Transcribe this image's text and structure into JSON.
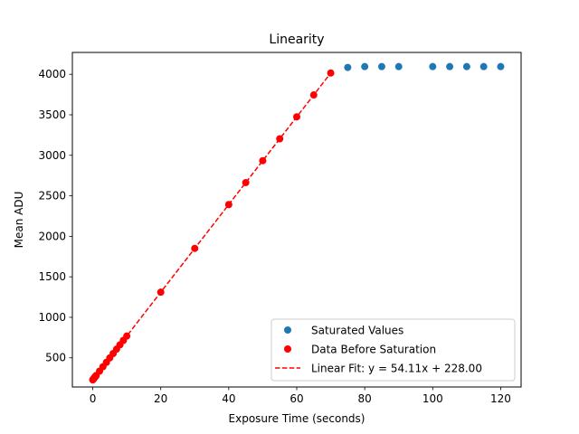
{
  "chart_data": {
    "type": "scatter",
    "title": "Linearity",
    "xlabel": "Exposure Time (seconds)",
    "ylabel": "Mean ADU",
    "xlim": [
      -6,
      126
    ],
    "ylim": [
      140,
      4270
    ],
    "xticks": [
      0,
      20,
      40,
      60,
      80,
      100,
      120
    ],
    "yticks": [
      500,
      1000,
      1500,
      2000,
      2500,
      3000,
      3500,
      4000
    ],
    "grid": false,
    "legend_position": "lower-right",
    "series": [
      {
        "name": "Saturated Values",
        "kind": "scatter",
        "color": "#1f77b4",
        "x": [
          75,
          80,
          85,
          90,
          100,
          105,
          110,
          115,
          120
        ],
        "y": [
          4085,
          4095,
          4095,
          4095,
          4095,
          4095,
          4095,
          4095,
          4095
        ]
      },
      {
        "name": "Data Before Saturation",
        "kind": "scatter",
        "color": "#ff0000",
        "x": [
          0,
          0.1,
          0.2,
          0.3,
          0.4,
          0.5,
          0.6,
          0.7,
          0.8,
          0.9,
          1,
          2,
          3,
          4,
          5,
          6,
          7,
          8,
          9,
          10,
          20,
          30,
          40,
          45,
          50,
          55,
          60,
          65,
          70
        ],
        "y": [
          228,
          234,
          239,
          244,
          250,
          255,
          261,
          266,
          271,
          277,
          282,
          336,
          390,
          444,
          499,
          553,
          607,
          661,
          715,
          769,
          1310,
          1851,
          2392,
          2663,
          2934,
          3204,
          3475,
          3745,
          4016
        ]
      },
      {
        "name": "Linear Fit: y = 54.11x + 228.00",
        "kind": "line",
        "style": "dashed",
        "color": "#ff0000",
        "slope": 54.11,
        "intercept": 228.0,
        "x_range": [
          0,
          70
        ]
      }
    ]
  }
}
